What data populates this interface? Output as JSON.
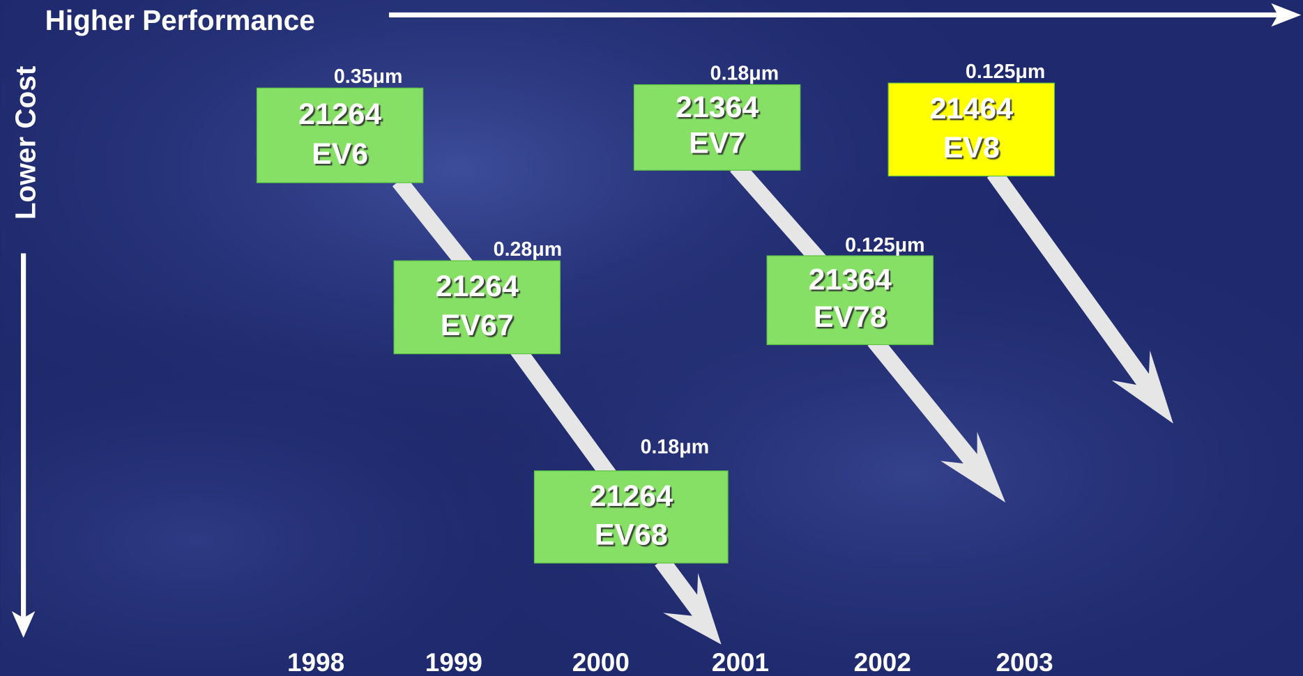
{
  "axes": {
    "horizontal": "Higher Performance",
    "vertical": "Lower Cost"
  },
  "nodes": [
    {
      "process": "0.35μm",
      "part": "21264",
      "core": "EV6"
    },
    {
      "process": "0.28μm",
      "part": "21264",
      "core": "EV67"
    },
    {
      "process": "0.18μm",
      "part": "21264",
      "core": "EV68"
    },
    {
      "process": "0.18μm",
      "part": "21364",
      "core": "EV7"
    },
    {
      "process": "0.125μm",
      "part": "21364",
      "core": "EV78"
    },
    {
      "process": "0.125μm",
      "part": "21464",
      "core": "EV8"
    }
  ],
  "years": [
    "1998",
    "1999",
    "2000",
    "2001",
    "2002",
    "2003"
  ]
}
